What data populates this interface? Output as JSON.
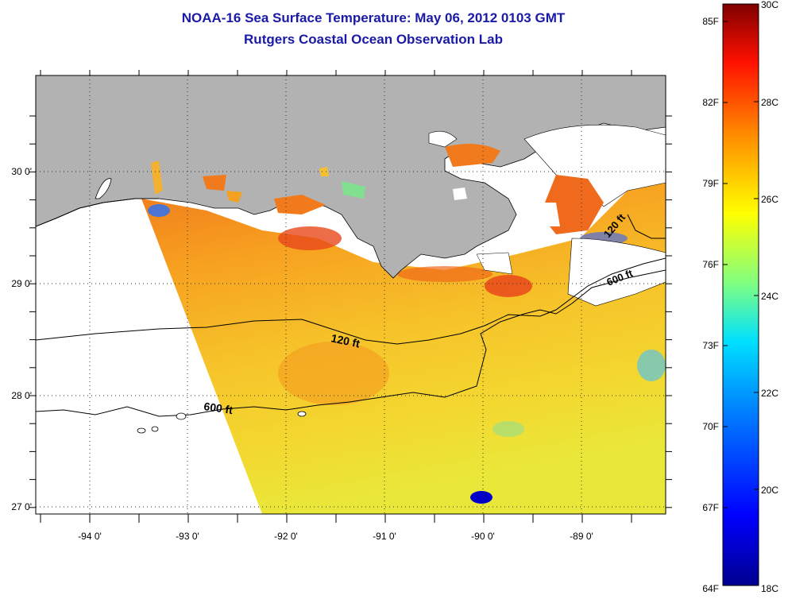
{
  "header": {
    "title": "NOAA-16 Sea Surface Temperature:  May 06, 2012 0103 GMT",
    "subtitle": "Rutgers Coastal Ocean Observation Lab"
  },
  "axes": {
    "longitude_ticks": [
      "-94 0'",
      "-93 0'",
      "-92 0'",
      "-91 0'",
      "-90 0'",
      "-89 0'"
    ],
    "latitude_ticks": [
      "30 0'",
      "29 0'",
      "28 0'",
      "27 0'"
    ],
    "lon_range": [
      -94.6,
      -88.0
    ],
    "lat_range": [
      26.95,
      30.85
    ]
  },
  "contours": {
    "shallow_label": "120 ft",
    "deep_label": "600 ft"
  },
  "colorbar": {
    "fahrenheit_labels": [
      "85F",
      "82F",
      "79F",
      "76F",
      "73F",
      "70F",
      "67F",
      "64F"
    ],
    "celsius_labels": [
      "30C",
      "28C",
      "26C",
      "24C",
      "22C",
      "20C",
      "18C"
    ],
    "range_c": [
      18,
      30
    ],
    "colormap": [
      "#00008f",
      "#0000ff",
      "#0080ff",
      "#00ffff",
      "#80ff80",
      "#ffff00",
      "#ff8000",
      "#ff0000",
      "#800000"
    ]
  },
  "colors": {
    "land": "#b2b2b2",
    "no_data": "#ffffff",
    "title": "#1a1aa6"
  }
}
